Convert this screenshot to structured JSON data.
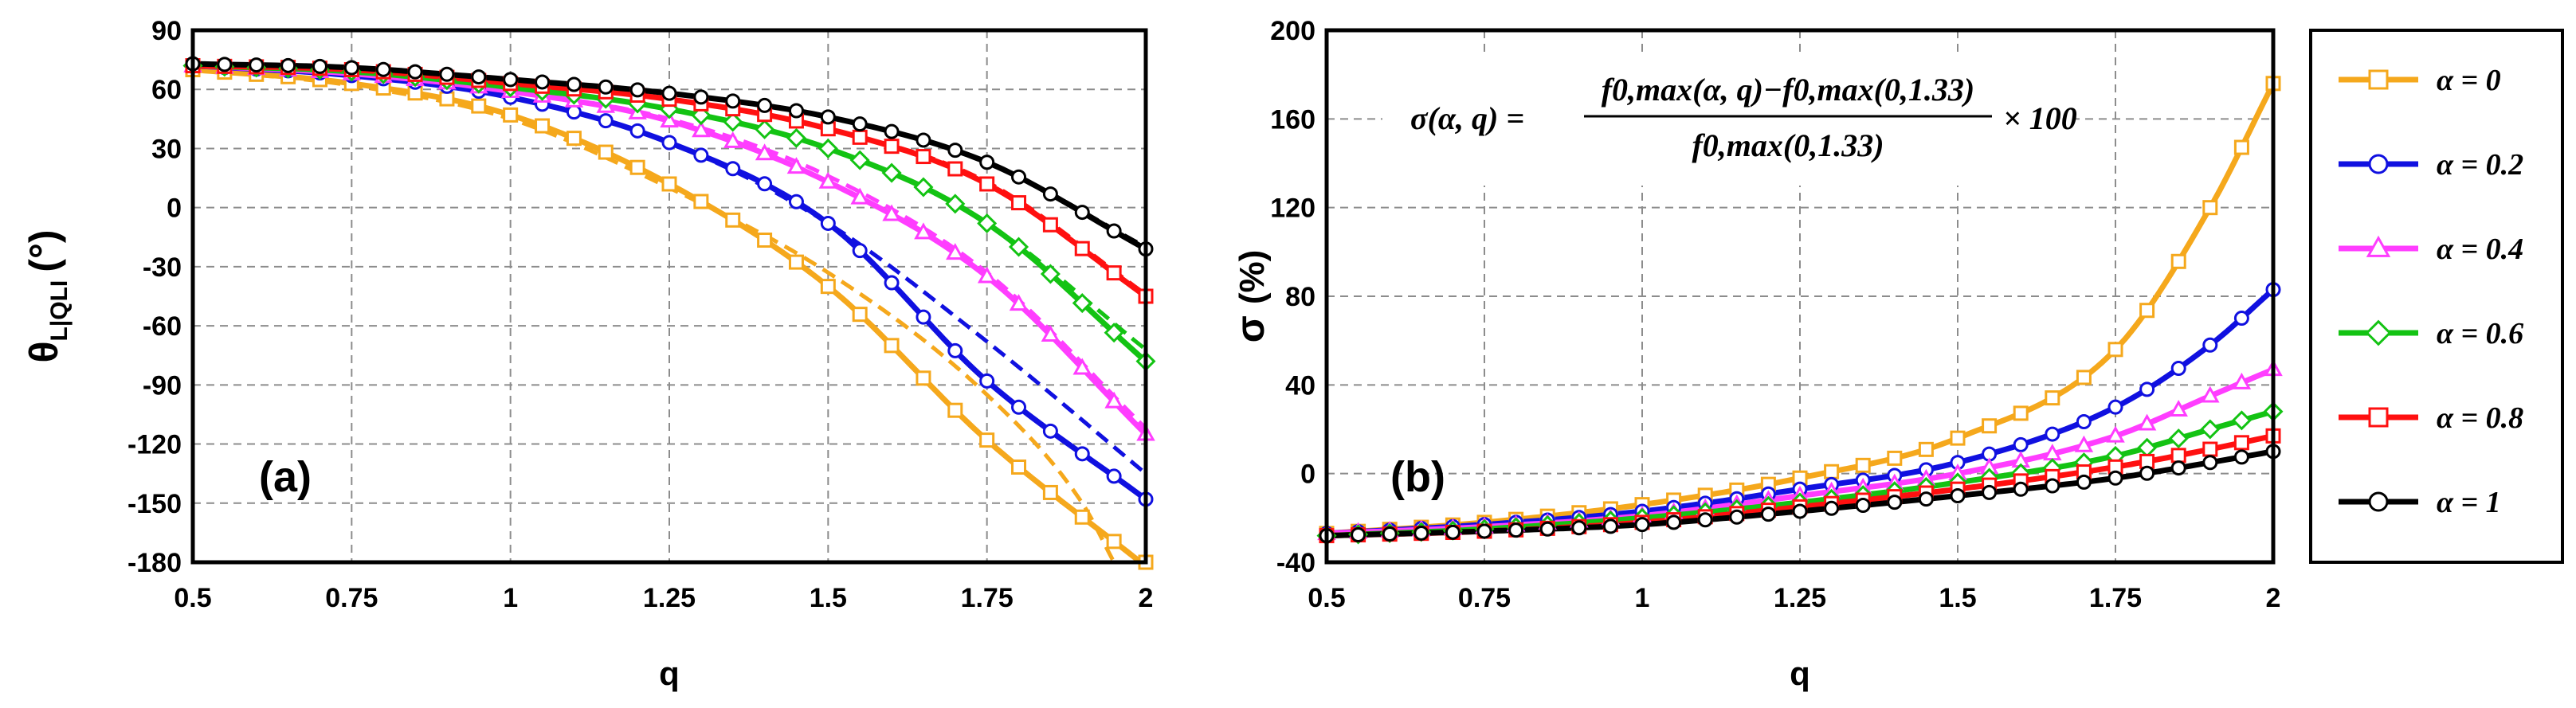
{
  "colors": {
    "alpha_0": "#f5a81c",
    "alpha_0.2": "#1010e0",
    "alpha_0.4": "#ff3dff",
    "alpha_0.6": "#13c313",
    "alpha_0.8": "#ff1010",
    "alpha_1": "#000000"
  },
  "legend": {
    "entries": [
      "α = 0",
      "α = 0.2",
      "α = 0.4",
      "α = 0.6",
      "α = 0.8",
      "α = 1"
    ],
    "markers": [
      "square",
      "circle",
      "triangle",
      "diamond",
      "square",
      "circle"
    ]
  },
  "chart_data": [
    {
      "type": "line",
      "panel_label": "(a)",
      "xlabel": "q",
      "ylabel_main": "θ",
      "ylabel_sub": "L|QLI",
      "ylabel_unit": "(°)",
      "xlim": [
        0.5,
        2
      ],
      "ylim": [
        -180,
        90
      ],
      "xticks": [
        "0.5",
        "0.75",
        "1",
        "1.25",
        "1.5",
        "1.75",
        "2"
      ],
      "yticks": [
        "90",
        "60",
        "30",
        "0",
        "-30",
        "-60",
        "-90",
        "-120",
        "-150",
        "-180"
      ],
      "grid": true,
      "series": [
        {
          "name": "α = 0",
          "solid": [
            [
              0.5,
              70
            ],
            [
              0.75,
              63
            ],
            [
              1,
              47
            ],
            [
              1.25,
              12
            ],
            [
              1.5,
              -40
            ],
            [
              1.75,
              -118
            ],
            [
              2,
              -182
            ]
          ],
          "dashed": [
            [
              0.5,
              70
            ],
            [
              0.75,
              62
            ],
            [
              1,
              45
            ],
            [
              1.25,
              10
            ],
            [
              1.5,
              -33
            ],
            [
              1.75,
              -95
            ],
            [
              1.9,
              -150
            ],
            [
              1.95,
              -180
            ]
          ]
        },
        {
          "name": "α = 0.2",
          "solid": [
            [
              0.5,
              72
            ],
            [
              0.75,
              67
            ],
            [
              1,
              56
            ],
            [
              1.25,
              33
            ],
            [
              1.5,
              -8
            ],
            [
              1.75,
              -88
            ],
            [
              2,
              -148
            ]
          ],
          "dashed": [
            [
              0.5,
              72
            ],
            [
              0.75,
              67
            ],
            [
              1,
              56
            ],
            [
              1.25,
              33
            ],
            [
              1.5,
              -8
            ],
            [
              1.75,
              -68
            ],
            [
              2,
              -135
            ]
          ]
        },
        {
          "name": "α = 0.4",
          "solid": [
            [
              0.5,
              72
            ],
            [
              0.75,
              68
            ],
            [
              1,
              59
            ],
            [
              1.25,
              44
            ],
            [
              1.5,
              13
            ],
            [
              1.75,
              -35
            ],
            [
              2,
              -115
            ]
          ],
          "dashed": [
            [
              0.5,
              72
            ],
            [
              0.75,
              68
            ],
            [
              1,
              59
            ],
            [
              1.25,
              45
            ],
            [
              1.5,
              16
            ],
            [
              1.75,
              -33
            ],
            [
              2,
              -112
            ]
          ]
        },
        {
          "name": "α = 0.6",
          "solid": [
            [
              0.5,
              72
            ],
            [
              0.75,
              69
            ],
            [
              1,
              61
            ],
            [
              1.25,
              50
            ],
            [
              1.5,
              30
            ],
            [
              1.75,
              -8
            ],
            [
              2,
              -78
            ]
          ],
          "dashed": [
            [
              0.5,
              72
            ],
            [
              0.75,
              69
            ],
            [
              1,
              61
            ],
            [
              1.25,
              50
            ],
            [
              1.5,
              30
            ],
            [
              1.75,
              -8
            ],
            [
              2,
              -72
            ]
          ]
        },
        {
          "name": "α = 0.8",
          "solid": [
            [
              0.5,
              72
            ],
            [
              0.75,
              70
            ],
            [
              1,
              63
            ],
            [
              1.25,
              55
            ],
            [
              1.5,
              40
            ],
            [
              1.75,
              12
            ],
            [
              2,
              -45
            ]
          ],
          "dashed": [
            [
              0.5,
              72
            ],
            [
              0.75,
              70
            ],
            [
              1,
              63
            ],
            [
              1.25,
              55
            ],
            [
              1.5,
              40
            ],
            [
              1.75,
              13
            ],
            [
              2,
              -44
            ]
          ]
        },
        {
          "name": "α = 1",
          "solid": [
            [
              0.5,
              73
            ],
            [
              0.75,
              71
            ],
            [
              1,
              65
            ],
            [
              1.25,
              58
            ],
            [
              1.5,
              46
            ],
            [
              1.75,
              23
            ],
            [
              2,
              -21
            ]
          ],
          "dashed": [
            [
              0.5,
              73
            ],
            [
              0.75,
              71
            ],
            [
              1,
              65
            ],
            [
              1.25,
              58
            ],
            [
              1.5,
              46
            ],
            [
              1.75,
              23
            ],
            [
              2,
              -20
            ]
          ]
        }
      ]
    },
    {
      "type": "line",
      "panel_label": "(b)",
      "xlabel": "q",
      "ylabel_main": "σ",
      "ylabel_unit": "(%)",
      "xlim": [
        0.5,
        2
      ],
      "ylim": [
        -40,
        200
      ],
      "xticks": [
        "0.5",
        "0.75",
        "1",
        "1.25",
        "1.5",
        "1.75",
        "2"
      ],
      "yticks": [
        "200",
        "160",
        "120",
        "80",
        "40",
        "0",
        "-40"
      ],
      "grid": true,
      "formula": {
        "lhs": "σ(α, q) =",
        "numerator": "f0,max(α, q)−f0,max(0,1.33)",
        "denominator": "f0,max(0,1.33)",
        "factor": "× 100"
      },
      "series": [
        {
          "name": "α = 0",
          "values": [
            [
              0.5,
              -27
            ],
            [
              0.75,
              -22
            ],
            [
              1,
              -14
            ],
            [
              1.25,
              -2
            ],
            [
              1.5,
              16
            ],
            [
              1.75,
              56
            ],
            [
              1.9,
              120
            ],
            [
              2,
              176
            ]
          ]
        },
        {
          "name": "α = 0.2",
          "values": [
            [
              0.5,
              -27
            ],
            [
              0.75,
              -23
            ],
            [
              1,
              -17
            ],
            [
              1.25,
              -7
            ],
            [
              1.5,
              5
            ],
            [
              1.75,
              30
            ],
            [
              1.9,
              58
            ],
            [
              2,
              83
            ]
          ]
        },
        {
          "name": "α = 0.4",
          "values": [
            [
              0.5,
              -27
            ],
            [
              0.75,
              -24
            ],
            [
              1,
              -19
            ],
            [
              1.25,
              -10
            ],
            [
              1.5,
              0
            ],
            [
              1.75,
              17
            ],
            [
              1.9,
              35
            ],
            [
              2,
              47
            ]
          ]
        },
        {
          "name": "α = 0.6",
          "values": [
            [
              0.5,
              -28
            ],
            [
              0.75,
              -25
            ],
            [
              1,
              -20
            ],
            [
              1.25,
              -13
            ],
            [
              1.5,
              -4
            ],
            [
              1.75,
              8
            ],
            [
              1.9,
              20
            ],
            [
              2,
              28
            ]
          ]
        },
        {
          "name": "α = 0.8",
          "values": [
            [
              0.5,
              -28
            ],
            [
              0.75,
              -26
            ],
            [
              1,
              -22
            ],
            [
              1.25,
              -15
            ],
            [
              1.5,
              -7
            ],
            [
              1.75,
              3
            ],
            [
              1.9,
              11
            ],
            [
              2,
              17
            ]
          ]
        },
        {
          "name": "α = 1",
          "values": [
            [
              0.5,
              -28
            ],
            [
              0.75,
              -26
            ],
            [
              1,
              -23
            ],
            [
              1.25,
              -17
            ],
            [
              1.5,
              -10
            ],
            [
              1.75,
              -2
            ],
            [
              1.9,
              5
            ],
            [
              2,
              10
            ]
          ]
        }
      ]
    }
  ]
}
